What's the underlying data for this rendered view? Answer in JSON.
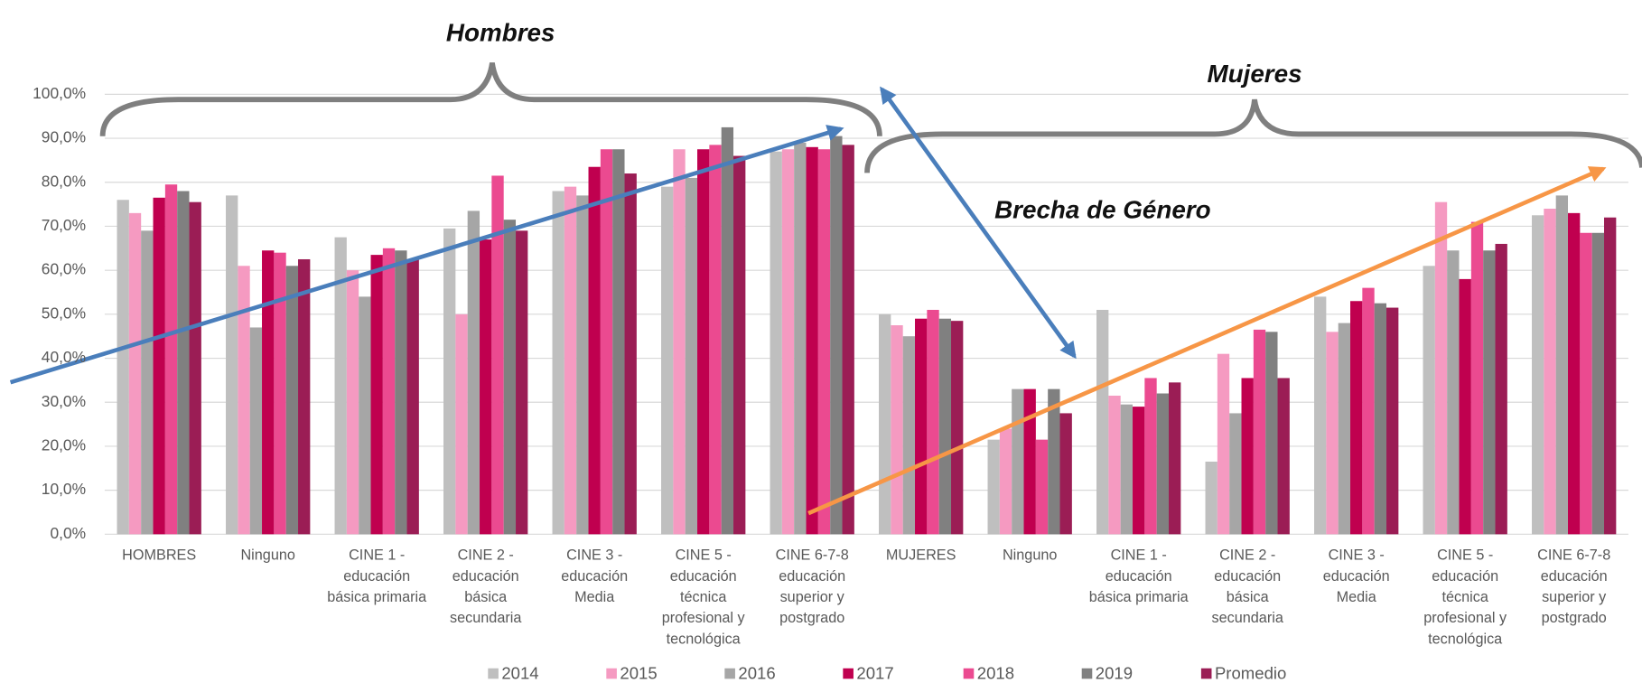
{
  "chart_data": {
    "type": "bar",
    "categories": [
      "HOMBRES",
      "Ninguno",
      "CINE 1 -\neducación\nbásica primaria",
      "CINE 2 -\neducación\nbásica\nsecundaria",
      "CINE 3 -\neducación\nMedia",
      "CINE 5 -\neducación\ntécnica\nprofesional y\ntecnológica",
      "CINE 6-7-8\neducación\nsuperior y\npostgrado",
      "MUJERES",
      "Ninguno",
      "CINE 1 -\neducación\nbásica primaria",
      "CINE 2 -\neducación\nbásica\nsecundaria",
      "CINE 3 -\neducación\nMedia",
      "CINE 5 -\neducación\ntécnica\nprofesional y\ntecnológica",
      "CINE 6-7-8\neducación\nsuperior y\npostgrado"
    ],
    "series": [
      {
        "name": "2014",
        "color": "#bfbfbf",
        "values": [
          76,
          77,
          67.5,
          69.5,
          78,
          79,
          87,
          50,
          21.5,
          51,
          16.5,
          54,
          61,
          72.5
        ]
      },
      {
        "name": "2015",
        "color": "#f59ac1",
        "values": [
          73,
          61,
          60,
          50,
          79,
          87.5,
          87.5,
          47.5,
          24,
          31.5,
          41,
          46,
          75.5,
          74
        ]
      },
      {
        "name": "2016",
        "color": "#a6a6a6",
        "values": [
          69,
          47,
          54,
          73.5,
          77,
          81,
          89,
          45,
          33,
          29.5,
          27.5,
          48,
          64.5,
          77
        ]
      },
      {
        "name": "2017",
        "color": "#c0004f",
        "values": [
          76.5,
          64.5,
          63.5,
          67,
          83.5,
          87.5,
          88,
          49,
          33,
          29,
          35.5,
          53,
          58,
          73
        ]
      },
      {
        "name": "2018",
        "color": "#eb4a90",
        "values": [
          79.5,
          64,
          65,
          81.5,
          87.5,
          88.5,
          87.5,
          51,
          21.5,
          35.5,
          46.5,
          56,
          71,
          68.5
        ]
      },
      {
        "name": "2019",
        "color": "#808080",
        "values": [
          78,
          61,
          64.5,
          71.5,
          87.5,
          92.5,
          90.5,
          49,
          33,
          32,
          46,
          52.5,
          64.5,
          68.5
        ]
      },
      {
        "name": "Promedio",
        "color": "#9b1d55",
        "values": [
          75.5,
          62.5,
          62.5,
          69,
          82,
          86,
          88.5,
          48.5,
          27.5,
          34.5,
          35.5,
          51.5,
          66,
          72
        ]
      }
    ],
    "ylim": [
      0,
      100
    ],
    "yticks": [
      {
        "value": 0,
        "label": "0,0%"
      },
      {
        "value": 10,
        "label": "10,0%"
      },
      {
        "value": 20,
        "label": "20,0%"
      },
      {
        "value": 30,
        "label": "30,0%"
      },
      {
        "value": 40,
        "label": "40,0%"
      },
      {
        "value": 50,
        "label": "50,0%"
      },
      {
        "value": 60,
        "label": "60,0%"
      },
      {
        "value": 70,
        "label": "70,0%"
      },
      {
        "value": 80,
        "label": "80,0%"
      },
      {
        "value": 90,
        "label": "90,0%"
      },
      {
        "value": 100,
        "label": "100,0%"
      }
    ],
    "grid": true,
    "legend": "bottom",
    "annotations": [
      "Hombres",
      "Mujeres",
      "Brecha de Género"
    ]
  }
}
